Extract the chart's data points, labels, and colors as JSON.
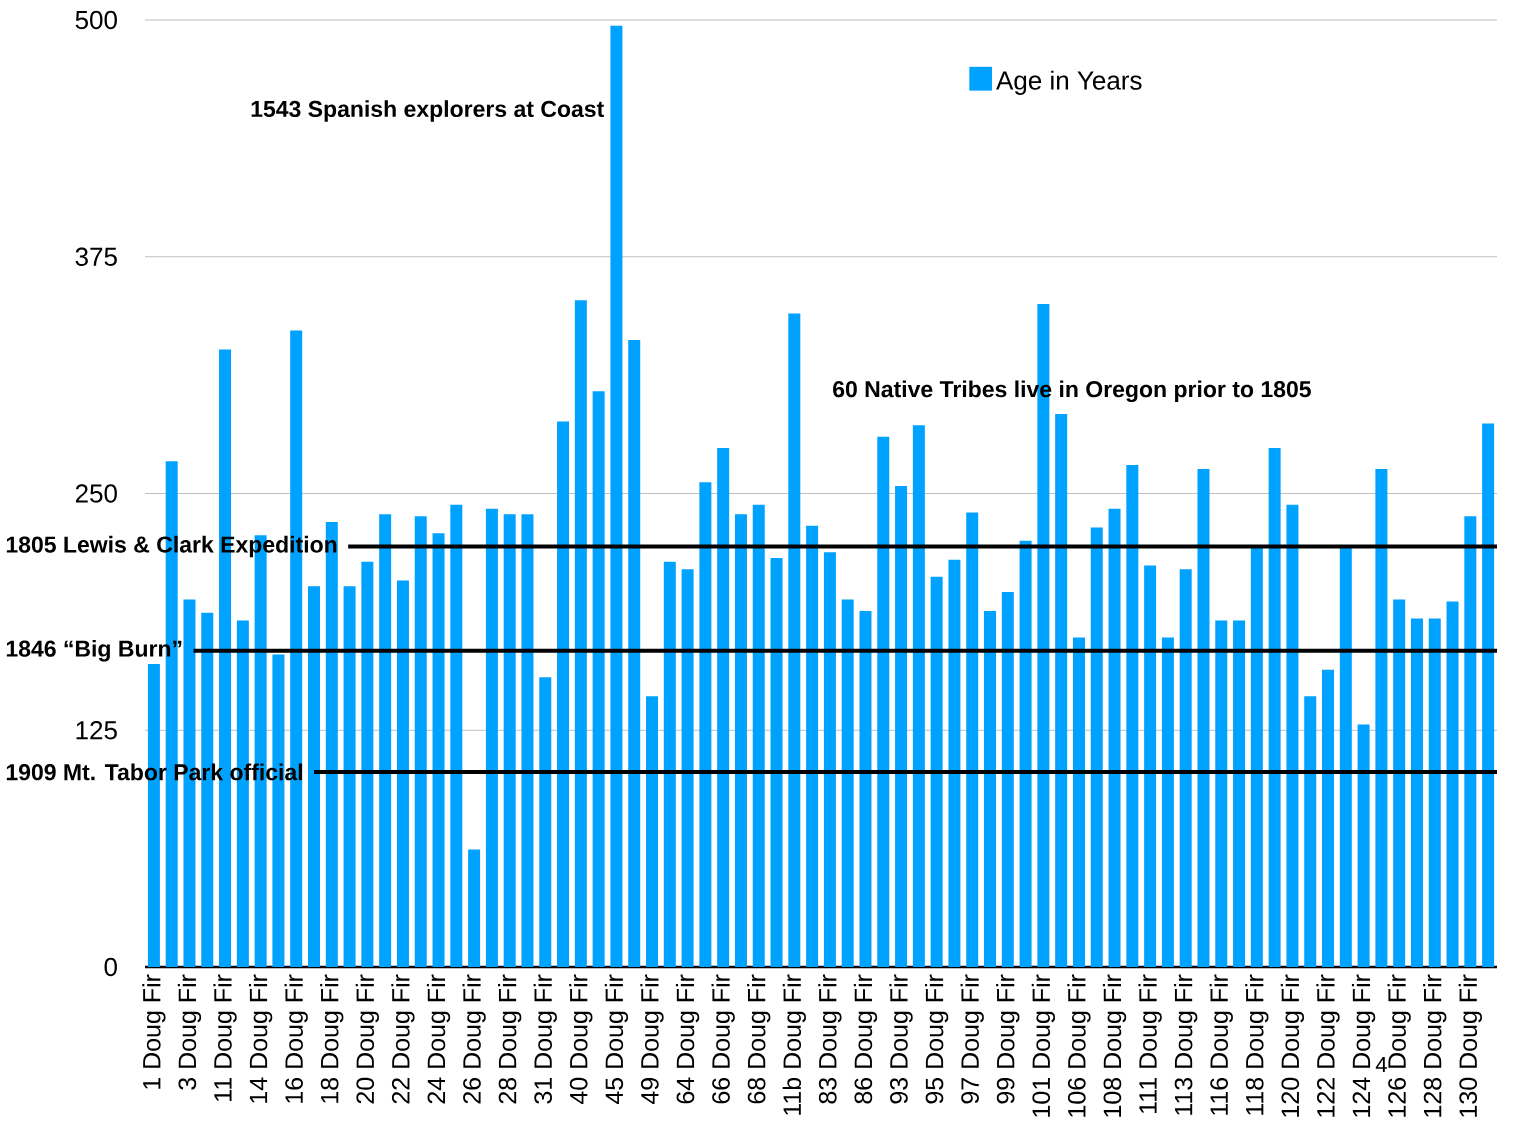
{
  "chart_data": {
    "type": "bar",
    "categories": [
      "1 Doug Fir",
      null,
      "3 Doug Fir",
      null,
      "11 Doug Fir",
      null,
      "14 Doug Fir",
      null,
      "16 Doug Fir",
      null,
      "18 Doug Fir",
      null,
      "20 Doug Fir",
      null,
      "22 Doug Fir",
      null,
      "24 Doug Fir",
      null,
      "26 Doug Fir",
      null,
      "28 Doug Fir",
      null,
      "31 Doug Fir",
      null,
      "40 Doug Fir",
      null,
      "45 Doug Fir",
      null,
      "49 Doug Fir",
      null,
      "64 Doug Fir",
      null,
      "66 Doug Fir",
      null,
      "68 Doug Fir",
      null,
      "11b Doug Fir",
      null,
      "83 Doug Fir",
      null,
      "86 Doug Fir",
      null,
      "93 Doug Fir",
      null,
      "95 Doug Fir",
      null,
      "97 Doug Fir",
      null,
      "99 Doug Fir",
      null,
      "101 Doug Fir",
      null,
      "106 Doug Fir",
      null,
      "108 Doug Fir",
      null,
      "111 Doug Fir",
      null,
      "113 Doug Fir",
      null,
      "116 Doug Fir",
      null,
      "118 Doug Fir",
      null,
      "120 Doug Fir",
      null,
      "122 Doug Fir",
      null,
      "124 Doug Fir",
      null,
      "126 Doug Fir",
      null,
      "128 Doug Fir",
      null,
      "130 Doug Fir",
      null
    ],
    "series": [
      {
        "name": "Age in Years",
        "color": "#00a2ff",
        "values": [
          160,
          267,
          194,
          187,
          326,
          183,
          228,
          165,
          336,
          201,
          235,
          201,
          214,
          239,
          204,
          238,
          229,
          244,
          62,
          242,
          239,
          239,
          153,
          288,
          352,
          304,
          497,
          331,
          143,
          214,
          210,
          256,
          274,
          239,
          244,
          216,
          345,
          233,
          219,
          194,
          188,
          280,
          254,
          286,
          206,
          215,
          240,
          188,
          198,
          225,
          350,
          292,
          174,
          232,
          242,
          265,
          212,
          174,
          210,
          263,
          183,
          183,
          222,
          274,
          244,
          143,
          157,
          222,
          128,
          263,
          194,
          184,
          184,
          193,
          238,
          287
        ]
      }
    ],
    "ylim": [
      0,
      500
    ],
    "yticks": [
      0,
      125,
      250,
      375,
      500
    ],
    "grid": "y",
    "legend": "top right",
    "ref_lines": [
      {
        "axis": "y",
        "value": 222,
        "label": "1805 Lewis & Clark Expedition",
        "color": "#000000"
      },
      {
        "axis": "y",
        "value": 167,
        "label": "1846 “Big Burn”",
        "color": "#000000"
      },
      {
        "axis": "y",
        "value": 103,
        "label": "1909 Mt. Tabor Park official",
        "color": "#000000"
      }
    ],
    "annotations": [
      "1543 Spanish explorers at Coast",
      "60 Native Tribes live in Oregon prior to 1805",
      "4"
    ]
  }
}
